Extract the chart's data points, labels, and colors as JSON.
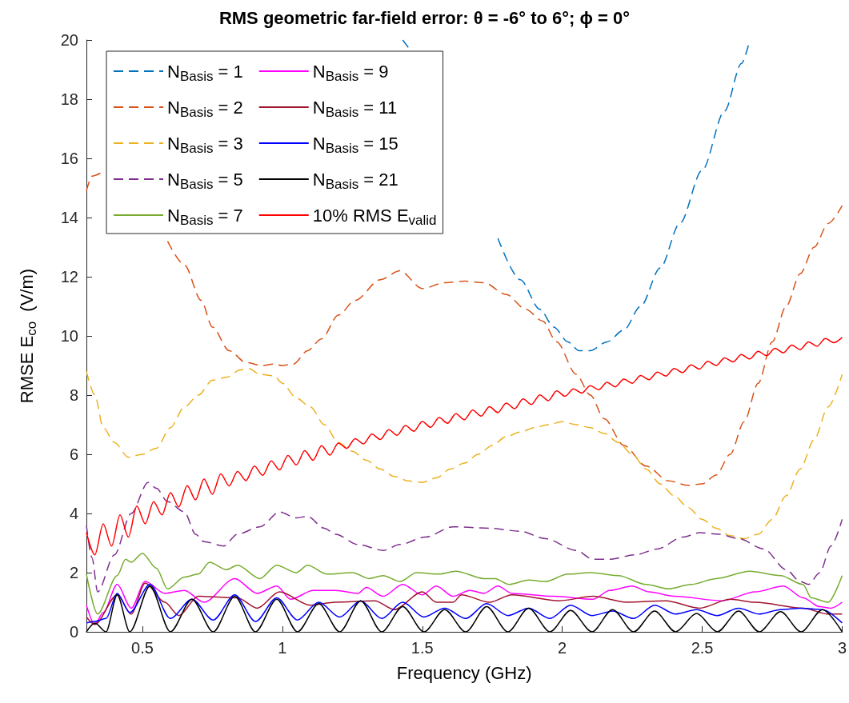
{
  "chart_data": {
    "type": "line",
    "title": "RMS geometric far-field error: θ = -6° to 6°; ϕ = 0°",
    "xlabel": "Frequency (GHz)",
    "ylabel": "RMSE E$_{co}$  (V/m)",
    "xlim": [
      0.3,
      3
    ],
    "xticks": [
      0.5,
      1,
      1.5,
      2,
      2.5,
      3
    ],
    "ylim": [
      0,
      20
    ],
    "yticks": [
      0,
      2,
      4,
      6,
      8,
      10,
      12,
      14,
      16,
      18,
      20
    ],
    "grid": false,
    "legend": "top left",
    "marker": "none",
    "series": [
      {
        "name": "N$_{Basis}$ = 1",
        "color": "#0072bd",
        "line_style": "dashed",
        "x": [
          1.43,
          1.45,
          1.6,
          1.77,
          1.85,
          1.92,
          1.97,
          2.02,
          2.06,
          2.1,
          2.16,
          2.22,
          2.28,
          2.35,
          2.42,
          2.5,
          2.58,
          2.64,
          2.67
        ],
        "values": [
          20,
          19.75,
          null,
          13.3,
          11.9,
          10.9,
          10.3,
          9.8,
          9.5,
          9.5,
          9.8,
          10.2,
          11,
          12.3,
          13.8,
          15.6,
          17.6,
          19.2,
          20
        ]
      },
      {
        "name": "N$_{Basis}$ = 2",
        "color": "#d95319",
        "line_style": "dashed",
        "x": [
          0.3,
          0.32,
          0.35,
          0.45,
          0.59,
          0.65,
          0.71,
          0.75,
          0.81,
          0.87,
          0.93,
          0.97,
          1.0,
          1.04,
          1.09,
          1.14,
          1.2,
          1.26,
          1.35,
          1.42,
          1.5,
          1.58,
          1.65,
          1.72,
          1.8,
          1.87,
          1.93,
          1.98,
          2.05,
          2.1,
          2.15,
          2.22,
          2.3,
          2.38,
          2.45,
          2.5,
          2.55,
          2.6,
          2.65,
          2.7,
          2.75,
          2.8,
          2.85,
          2.9,
          2.95,
          3.0
        ],
        "values": [
          14.9,
          15.4,
          15.5,
          null,
          13.2,
          12.4,
          11.2,
          10.3,
          9.5,
          9.1,
          9.0,
          9.05,
          9.0,
          9.05,
          9.5,
          9.9,
          10.7,
          11.2,
          11.9,
          12.2,
          11.6,
          11.8,
          11.85,
          11.8,
          11.4,
          10.9,
          10.5,
          9.8,
          8.7,
          8.0,
          7.2,
          6.3,
          5.6,
          5.1,
          4.95,
          5.0,
          5.3,
          6.0,
          7.1,
          8.4,
          9.8,
          11.0,
          12.1,
          13.0,
          13.8,
          14.4
        ]
      },
      {
        "name": "N$_{Basis}$ = 3",
        "color": "#edb120",
        "line_style": "dashed",
        "x": [
          0.3,
          0.33,
          0.36,
          0.4,
          0.45,
          0.5,
          0.55,
          0.6,
          0.65,
          0.7,
          0.75,
          0.8,
          0.85,
          0.88,
          0.92,
          0.97,
          1.0,
          1.05,
          1.1,
          1.15,
          1.2,
          1.25,
          1.3,
          1.35,
          1.4,
          1.45,
          1.5,
          1.55,
          1.6,
          1.65,
          1.7,
          1.75,
          1.8,
          1.85,
          1.9,
          1.95,
          2.0,
          2.05,
          2.1,
          2.15,
          2.2,
          2.25,
          2.3,
          2.35,
          2.4,
          2.45,
          2.5,
          2.55,
          2.6,
          2.65,
          2.7,
          2.75,
          2.8,
          2.85,
          2.9,
          2.95,
          3.0
        ],
        "values": [
          8.8,
          8.0,
          6.9,
          6.4,
          5.9,
          6.0,
          6.2,
          6.9,
          7.6,
          8.0,
          8.5,
          8.6,
          8.85,
          8.9,
          8.7,
          8.65,
          8.4,
          7.9,
          7.6,
          7.0,
          6.4,
          6.1,
          5.8,
          5.5,
          5.25,
          5.1,
          5.05,
          5.2,
          5.5,
          5.7,
          6.0,
          6.3,
          6.6,
          6.75,
          6.9,
          7.0,
          7.1,
          7.0,
          6.9,
          6.7,
          6.4,
          6.0,
          5.5,
          5.0,
          4.6,
          4.2,
          3.8,
          3.5,
          3.25,
          3.15,
          3.3,
          3.8,
          4.6,
          5.5,
          6.5,
          7.6,
          8.7
        ]
      },
      {
        "name": "N$_{Basis}$ = 5",
        "color": "#7e2f8e",
        "line_style": "dashed",
        "x": [
          0.3,
          0.32,
          0.34,
          0.4,
          0.46,
          0.52,
          0.55,
          0.59,
          0.65,
          0.69,
          0.72,
          0.79,
          0.84,
          0.92,
          0.99,
          1.05,
          1.09,
          1.15,
          1.19,
          1.27,
          1.36,
          1.42,
          1.51,
          1.61,
          1.74,
          1.85,
          1.94,
          2.05,
          2.11,
          2.17,
          2.26,
          2.34,
          2.43,
          2.49,
          2.56,
          2.63,
          2.72,
          2.8,
          2.85,
          2.88,
          2.92,
          2.96,
          3.0
        ],
        "values": [
          3.6,
          2.5,
          1.35,
          2.6,
          4.0,
          5.05,
          4.85,
          4.4,
          4.05,
          3.3,
          3.05,
          2.9,
          3.3,
          3.55,
          4.05,
          3.85,
          3.9,
          3.5,
          3.3,
          2.95,
          2.75,
          2.95,
          3.2,
          3.55,
          3.5,
          3.4,
          3.15,
          2.75,
          2.45,
          2.45,
          2.6,
          2.8,
          3.2,
          3.35,
          3.3,
          3.15,
          2.8,
          2.1,
          1.7,
          1.6,
          2.0,
          2.9,
          3.8
        ]
      },
      {
        "name": "N$_{Basis}$ = 7",
        "color": "#77ac30",
        "line_style": "solid",
        "x": [
          0.3,
          0.34,
          0.41,
          0.44,
          0.46,
          0.5,
          0.55,
          0.59,
          0.65,
          0.7,
          0.74,
          0.8,
          0.84,
          0.92,
          0.98,
          1.05,
          1.09,
          1.16,
          1.25,
          1.31,
          1.36,
          1.42,
          1.48,
          1.56,
          1.62,
          1.72,
          1.76,
          1.81,
          1.88,
          1.94,
          2.02,
          2.1,
          2.2,
          2.3,
          2.38,
          2.46,
          2.55,
          2.67,
          2.78,
          2.86,
          2.89,
          2.95,
          3.0
        ],
        "values": [
          1.95,
          0.6,
          1.9,
          2.45,
          2.35,
          2.65,
          2.15,
          1.45,
          1.85,
          1.95,
          2.35,
          2.1,
          2.25,
          1.8,
          2.25,
          2.0,
          2.25,
          1.95,
          2.0,
          1.8,
          1.9,
          1.7,
          2.0,
          1.95,
          2.05,
          1.8,
          1.8,
          1.6,
          1.75,
          1.7,
          1.95,
          2.0,
          1.9,
          1.6,
          1.45,
          1.6,
          1.8,
          2.05,
          1.9,
          1.6,
          1.15,
          1.0,
          1.9
        ]
      },
      {
        "name": "N$_{Basis}$ = 9",
        "color": "#ff00ff",
        "line_style": "solid",
        "x": [
          0.3,
          0.33,
          0.36,
          0.41,
          0.46,
          0.51,
          0.58,
          0.65,
          0.72,
          0.83,
          0.91,
          0.98,
          1.03,
          1.11,
          1.19,
          1.27,
          1.3,
          1.36,
          1.43,
          1.5,
          1.55,
          1.61,
          1.67,
          1.72,
          1.77,
          1.82,
          1.97,
          2.11,
          2.17,
          2.25,
          2.31,
          2.4,
          2.57,
          2.69,
          2.79,
          2.86,
          2.92,
          2.96,
          3.0
        ],
        "values": [
          0.9,
          0.25,
          0.65,
          1.6,
          0.8,
          1.7,
          1.3,
          1.4,
          1.0,
          1.8,
          1.3,
          1.55,
          1.1,
          1.4,
          1.4,
          1.3,
          1.5,
          1.2,
          1.6,
          1.25,
          1.55,
          1.2,
          1.4,
          1.3,
          1.55,
          1.3,
          1.2,
          1.1,
          1.4,
          1.55,
          1.35,
          1.2,
          1.05,
          1.35,
          1.55,
          1.15,
          0.85,
          0.8,
          1.0
        ]
      },
      {
        "name": "N$_{Basis}$ = 11",
        "color": "#a2142f",
        "line_style": "solid",
        "x": [
          0.3,
          0.33,
          0.41,
          0.46,
          0.51,
          0.58,
          0.63,
          0.7,
          0.84,
          0.91,
          0.99,
          1.1,
          1.19,
          1.33,
          1.4,
          1.5,
          1.55,
          1.61,
          1.64,
          1.74,
          1.82,
          1.99,
          2.11,
          2.23,
          2.37,
          2.49,
          2.6,
          2.69,
          2.86,
          2.95,
          3.0
        ],
        "values": [
          0.5,
          0.25,
          1.25,
          0.6,
          1.65,
          1.0,
          0.55,
          1.2,
          1.15,
          0.8,
          1.35,
          0.9,
          1.0,
          1.05,
          0.75,
          1.35,
          1.0,
          1.0,
          1.25,
          1.0,
          1.25,
          1.05,
          1.2,
          1.0,
          1.05,
          0.8,
          1.1,
          1.0,
          0.8,
          0.6,
          0.6
        ]
      },
      {
        "name": "N$_{Basis}$ = 15",
        "color": "#0000ff",
        "line_style": "solid",
        "x": [
          0.3,
          0.33,
          0.37,
          0.41,
          0.455,
          0.527,
          0.6,
          0.677,
          0.753,
          0.83,
          0.904,
          0.98,
          1.054,
          1.13,
          1.205,
          1.28,
          1.355,
          1.43,
          1.506,
          1.58,
          1.655,
          1.73,
          1.806,
          1.88,
          1.956,
          2.03,
          2.106,
          2.18,
          2.255,
          2.33,
          2.405,
          2.48,
          2.554,
          2.63,
          2.704,
          2.78,
          2.853,
          2.93,
          3.0
        ],
        "values": [
          0.3,
          0.35,
          0.45,
          1.3,
          0.65,
          1.6,
          0.45,
          1.1,
          0.4,
          1.25,
          0.35,
          1.15,
          0.4,
          1.0,
          0.5,
          1.05,
          0.45,
          1.0,
          0.5,
          0.8,
          0.45,
          0.95,
          0.55,
          0.8,
          0.45,
          0.9,
          0.55,
          0.7,
          0.45,
          0.9,
          0.6,
          0.75,
          0.55,
          0.8,
          0.6,
          0.75,
          0.8,
          0.75,
          0.3
        ]
      },
      {
        "name": "N$_{Basis}$ = 21",
        "color": "#000000",
        "line_style": "solid",
        "x": [
          0.3,
          0.33,
          0.37,
          0.41,
          0.455,
          0.527,
          0.6,
          0.677,
          0.753,
          0.83,
          0.904,
          0.98,
          1.054,
          1.13,
          1.205,
          1.28,
          1.355,
          1.43,
          1.506,
          1.58,
          1.655,
          1.73,
          1.806,
          1.88,
          1.956,
          2.03,
          2.106,
          2.18,
          2.255,
          2.33,
          2.405,
          2.48,
          2.554,
          2.63,
          2.704,
          2.78,
          2.853,
          2.93,
          3.0
        ],
        "values": [
          0,
          0.3,
          0,
          1.25,
          0,
          1.55,
          0,
          1.1,
          0,
          1.2,
          0,
          1.1,
          0,
          0.95,
          0,
          1.05,
          0,
          0.85,
          0,
          0.75,
          0,
          0.85,
          0,
          0.8,
          0,
          0.72,
          0,
          0.75,
          0,
          0.7,
          0,
          0.62,
          0,
          0.7,
          0,
          0.68,
          0,
          0.75,
          0
        ]
      },
      {
        "name": "10% RMS E$_{valid}$",
        "color": "#ff0000",
        "line_style": "solid",
        "x": [
          0.3,
          0.33,
          0.36,
          0.39,
          0.42,
          0.45,
          0.48,
          0.51,
          0.54,
          0.57,
          0.6,
          0.63,
          0.66,
          0.69,
          0.72,
          0.75,
          0.78,
          0.81,
          0.84,
          0.87,
          0.9,
          0.93,
          0.96,
          0.99,
          1.02,
          1.05,
          1.08,
          1.11,
          1.14,
          1.17,
          1.2,
          1.23,
          1.26,
          1.29,
          1.32,
          1.35,
          1.38,
          1.41,
          1.44,
          1.47,
          1.5,
          1.53,
          1.56,
          1.59,
          1.62,
          1.65,
          1.68,
          1.71,
          1.74,
          1.77,
          1.8,
          1.83,
          1.86,
          1.89,
          1.92,
          1.95,
          1.98,
          2.01,
          2.04,
          2.07,
          2.1,
          2.13,
          2.16,
          2.19,
          2.22,
          2.25,
          2.28,
          2.31,
          2.34,
          2.37,
          2.4,
          2.43,
          2.46,
          2.49,
          2.52,
          2.55,
          2.58,
          2.61,
          2.64,
          2.67,
          2.7,
          2.73,
          2.76,
          2.79,
          2.82,
          2.85,
          2.88,
          2.91,
          2.94,
          2.97,
          3.0
        ],
        "values": [
          3.35,
          2.6,
          3.65,
          2.9,
          3.95,
          3.2,
          4.25,
          3.65,
          4.4,
          3.95,
          4.7,
          4.22,
          4.94,
          4.46,
          5.16,
          4.65,
          5.34,
          4.93,
          5.42,
          5.11,
          5.6,
          5.29,
          5.78,
          5.47,
          5.96,
          5.64,
          6.12,
          5.8,
          6.29,
          5.97,
          6.38,
          6.2,
          6.53,
          6.35,
          6.68,
          6.5,
          6.83,
          6.64,
          6.97,
          6.78,
          7.11,
          6.91,
          7.24,
          7.05,
          7.37,
          7.17,
          7.49,
          7.29,
          7.61,
          7.41,
          7.73,
          7.54,
          7.87,
          7.68,
          8.01,
          7.81,
          8.14,
          7.96,
          8.21,
          8.07,
          8.32,
          8.18,
          8.43,
          8.28,
          8.54,
          8.4,
          8.66,
          8.52,
          8.78,
          8.64,
          8.9,
          8.76,
          9.02,
          8.88,
          9.14,
          9.0,
          9.26,
          9.12,
          9.37,
          9.22,
          9.48,
          9.33,
          9.58,
          9.43,
          9.69,
          9.54,
          9.8,
          9.65,
          9.91,
          9.77,
          9.95
        ]
      }
    ]
  }
}
